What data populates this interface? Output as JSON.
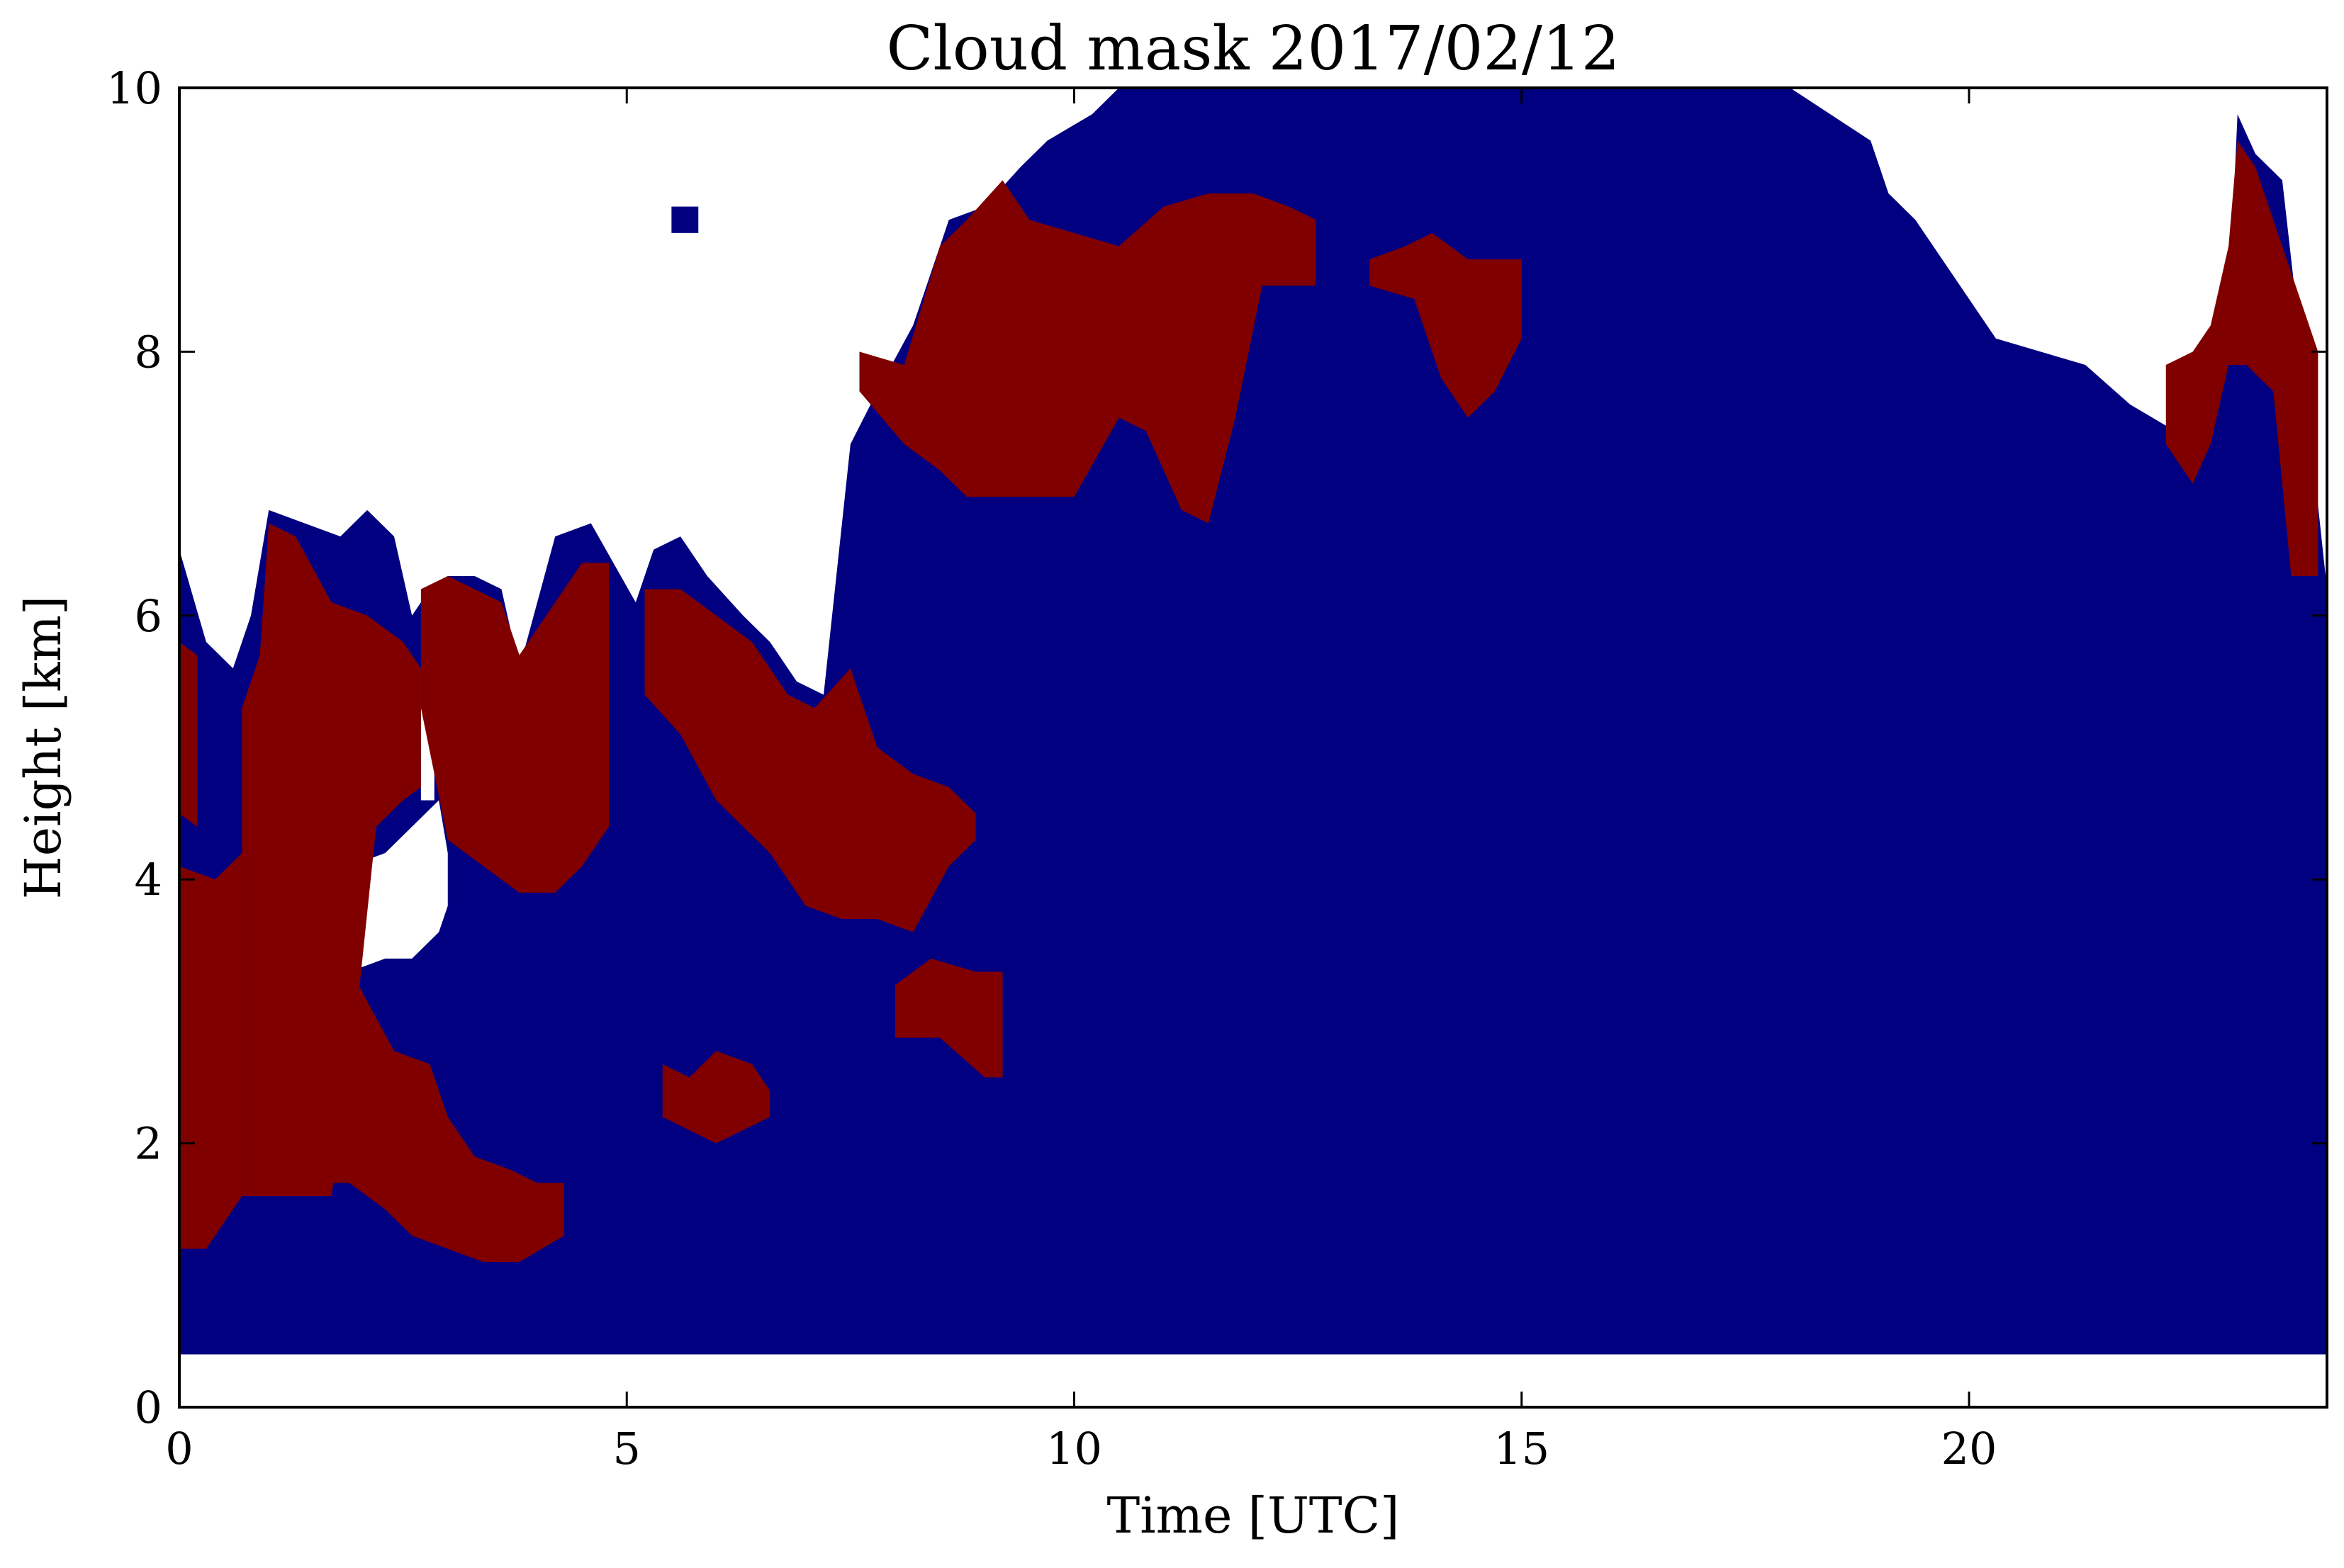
{
  "chart_data": {
    "type": "heatmap",
    "title": "Cloud mask 2017/02/12",
    "xlabel": "Time [UTC]",
    "ylabel": "Height [km]",
    "xlim": [
      0,
      24
    ],
    "ylim": [
      0,
      10
    ],
    "x_ticks": [
      0,
      5,
      10,
      15,
      20
    ],
    "y_ticks": [
      0,
      2,
      4,
      6,
      8,
      10
    ],
    "grid": false,
    "colors": {
      "cloud": "#000080",
      "ice": "#800000",
      "clear": "#ffffff",
      "axes": "#000000"
    },
    "categories": [
      "clear",
      "cloud",
      "ice"
    ],
    "bottom_gap_top_km": 0.4,
    "cloud_top_km": [
      [
        0.0,
        6.5
      ],
      [
        0.3,
        5.8
      ],
      [
        0.6,
        5.6
      ],
      [
        0.8,
        6.0
      ],
      [
        1.0,
        6.8
      ],
      [
        1.4,
        6.7
      ],
      [
        1.8,
        6.6
      ],
      [
        2.1,
        6.8
      ],
      [
        2.4,
        6.6
      ],
      [
        2.6,
        6.0
      ],
      [
        2.8,
        6.2
      ],
      [
        3.0,
        6.3
      ],
      [
        3.3,
        6.3
      ],
      [
        3.6,
        6.2
      ],
      [
        3.8,
        5.6
      ],
      [
        4.2,
        6.6
      ],
      [
        4.6,
        6.7
      ],
      [
        5.1,
        6.1
      ],
      [
        5.3,
        6.5
      ],
      [
        5.6,
        6.6
      ],
      [
        5.9,
        6.3
      ],
      [
        6.3,
        6.0
      ],
      [
        6.6,
        5.8
      ],
      [
        6.9,
        5.5
      ],
      [
        7.2,
        5.4
      ],
      [
        7.5,
        7.3
      ],
      [
        7.8,
        7.7
      ],
      [
        8.2,
        8.2
      ],
      [
        8.6,
        9.0
      ],
      [
        9.0,
        9.1
      ],
      [
        9.4,
        9.4
      ],
      [
        9.7,
        9.6
      ],
      [
        10.2,
        9.8
      ],
      [
        10.5,
        10.0
      ],
      [
        12.0,
        10.0
      ],
      [
        15.0,
        10.0
      ],
      [
        18.0,
        10.0
      ],
      [
        18.9,
        9.6
      ],
      [
        19.1,
        9.2
      ],
      [
        19.4,
        9.0
      ],
      [
        19.8,
        8.6
      ],
      [
        20.3,
        8.1
      ],
      [
        20.8,
        8.0
      ],
      [
        21.3,
        7.9
      ],
      [
        21.8,
        7.6
      ],
      [
        22.3,
        7.4
      ],
      [
        22.6,
        7.6
      ],
      [
        22.9,
        8.3
      ],
      [
        23.0,
        9.8
      ],
      [
        23.2,
        9.5
      ],
      [
        23.5,
        9.3
      ],
      [
        23.7,
        8.1
      ],
      [
        24.0,
        6.2
      ]
    ],
    "ice_regions": [
      {
        "top": [
          [
            0.0,
            5.8
          ],
          [
            0.2,
            5.7
          ]
        ],
        "bottom": [
          [
            0.0,
            4.5
          ],
          [
            0.2,
            4.4
          ]
        ]
      },
      {
        "top": [
          [
            0.0,
            4.1
          ],
          [
            0.4,
            4.0
          ],
          [
            0.7,
            4.2
          ]
        ],
        "bottom": [
          [
            0.0,
            1.2
          ],
          [
            0.3,
            1.2
          ],
          [
            0.5,
            1.4
          ],
          [
            0.7,
            1.6
          ]
        ]
      },
      {
        "top": [
          [
            0.7,
            5.3
          ],
          [
            0.9,
            5.7
          ],
          [
            1.0,
            6.7
          ],
          [
            1.3,
            6.6
          ],
          [
            1.7,
            6.1
          ],
          [
            2.1,
            6.0
          ],
          [
            2.5,
            5.8
          ],
          [
            2.7,
            5.6
          ]
        ],
        "bottom": [
          [
            0.7,
            1.6
          ],
          [
            1.0,
            1.6
          ],
          [
            1.4,
            1.6
          ],
          [
            1.7,
            1.6
          ],
          [
            2.0,
            3.1
          ],
          [
            2.2,
            4.4
          ],
          [
            2.5,
            4.6
          ],
          [
            2.7,
            4.7
          ]
        ]
      },
      {
        "top": [
          [
            1.5,
            3.2
          ],
          [
            2.0,
            3.2
          ],
          [
            2.4,
            2.7
          ],
          [
            2.8,
            2.6
          ],
          [
            3.0,
            2.2
          ],
          [
            3.3,
            1.9
          ],
          [
            3.7,
            1.8
          ],
          [
            4.0,
            1.7
          ],
          [
            4.3,
            1.7
          ]
        ],
        "bottom": [
          [
            1.5,
            1.7
          ],
          [
            1.9,
            1.7
          ],
          [
            2.3,
            1.5
          ],
          [
            2.6,
            1.3
          ],
          [
            3.0,
            1.2
          ],
          [
            3.4,
            1.1
          ],
          [
            3.8,
            1.1
          ],
          [
            4.3,
            1.3
          ]
        ]
      },
      {
        "top": [
          [
            2.7,
            6.2
          ],
          [
            3.0,
            6.3
          ],
          [
            3.6,
            6.1
          ],
          [
            3.8,
            5.7
          ],
          [
            4.2,
            6.1
          ],
          [
            4.5,
            6.4
          ],
          [
            4.8,
            6.4
          ]
        ],
        "bottom": [
          [
            2.7,
            5.3
          ],
          [
            3.0,
            4.3
          ],
          [
            3.4,
            4.1
          ],
          [
            3.8,
            3.9
          ],
          [
            4.2,
            3.9
          ],
          [
            4.5,
            4.1
          ],
          [
            4.8,
            4.4
          ]
        ]
      },
      {
        "top": [
          [
            5.2,
            6.2
          ],
          [
            5.6,
            6.2
          ],
          [
            6.0,
            6.0
          ],
          [
            6.4,
            5.8
          ],
          [
            6.8,
            5.4
          ],
          [
            7.1,
            5.3
          ],
          [
            7.5,
            5.6
          ],
          [
            7.8,
            5.0
          ],
          [
            8.2,
            4.8
          ],
          [
            8.6,
            4.7
          ],
          [
            8.9,
            4.5
          ]
        ],
        "bottom": [
          [
            5.2,
            5.4
          ],
          [
            5.6,
            5.1
          ],
          [
            6.0,
            4.6
          ],
          [
            6.3,
            4.4
          ],
          [
            6.6,
            4.2
          ],
          [
            7.0,
            3.8
          ],
          [
            7.4,
            3.7
          ],
          [
            7.8,
            3.7
          ],
          [
            8.2,
            3.6
          ],
          [
            8.6,
            4.1
          ],
          [
            8.9,
            4.3
          ]
        ]
      },
      {
        "top": [
          [
            8.0,
            3.2
          ],
          [
            8.4,
            3.4
          ],
          [
            8.9,
            3.3
          ],
          [
            9.2,
            3.3
          ]
        ],
        "bottom": [
          [
            8.0,
            2.8
          ],
          [
            8.5,
            2.8
          ],
          [
            9.0,
            2.5
          ],
          [
            9.2,
            2.5
          ]
        ]
      },
      {
        "top": [
          [
            5.4,
            2.6
          ],
          [
            5.7,
            2.5
          ],
          [
            6.0,
            2.7
          ],
          [
            6.4,
            2.6
          ],
          [
            6.6,
            2.4
          ]
        ],
        "bottom": [
          [
            5.4,
            2.2
          ],
          [
            5.7,
            2.1
          ],
          [
            6.0,
            2.0
          ],
          [
            6.3,
            2.1
          ],
          [
            6.6,
            2.2
          ]
        ]
      },
      {
        "top": [
          [
            7.6,
            8.0
          ],
          [
            8.1,
            7.9
          ],
          [
            8.5,
            8.8
          ],
          [
            8.8,
            9.0
          ],
          [
            9.2,
            9.3
          ],
          [
            9.5,
            9.0
          ],
          [
            10.0,
            8.9
          ],
          [
            10.5,
            8.8
          ],
          [
            11.0,
            9.1
          ],
          [
            11.5,
            9.2
          ],
          [
            12.0,
            9.2
          ],
          [
            12.4,
            9.1
          ],
          [
            12.7,
            9.0
          ]
        ],
        "bottom": [
          [
            7.6,
            7.7
          ],
          [
            8.1,
            7.3
          ],
          [
            8.5,
            7.1
          ],
          [
            8.8,
            6.9
          ],
          [
            9.3,
            6.9
          ],
          [
            10.0,
            6.9
          ],
          [
            10.5,
            7.5
          ],
          [
            10.8,
            7.4
          ],
          [
            11.2,
            6.8
          ],
          [
            11.5,
            6.7
          ],
          [
            11.8,
            7.5
          ],
          [
            12.1,
            8.5
          ],
          [
            12.7,
            8.5
          ]
        ]
      },
      {
        "top": [
          [
            13.3,
            8.7
          ],
          [
            13.7,
            8.8
          ],
          [
            14.0,
            8.9
          ],
          [
            14.4,
            8.7
          ],
          [
            15.0,
            8.7
          ]
        ],
        "bottom": [
          [
            13.3,
            8.5
          ],
          [
            13.8,
            8.4
          ],
          [
            14.1,
            7.8
          ],
          [
            14.4,
            7.5
          ],
          [
            14.7,
            7.7
          ],
          [
            15.0,
            8.1
          ]
        ]
      },
      {
        "top": [
          [
            22.2,
            7.9
          ],
          [
            22.5,
            8.0
          ],
          [
            22.7,
            8.2
          ],
          [
            22.9,
            8.8
          ],
          [
            23.0,
            9.6
          ],
          [
            23.2,
            9.4
          ],
          [
            23.6,
            8.6
          ],
          [
            23.9,
            8.0
          ]
        ],
        "bottom": [
          [
            22.2,
            7.3
          ],
          [
            22.5,
            7.0
          ],
          [
            22.7,
            7.3
          ],
          [
            22.9,
            7.9
          ],
          [
            23.1,
            7.9
          ],
          [
            23.4,
            7.7
          ],
          [
            23.6,
            6.3
          ],
          [
            23.9,
            6.3
          ]
        ]
      }
    ],
    "clear_gaps": [
      {
        "top": [
          [
            1.9,
            4.1
          ],
          [
            2.3,
            4.2
          ],
          [
            2.6,
            4.4
          ],
          [
            2.9,
            4.6
          ],
          [
            3.0,
            4.2
          ]
        ],
        "bottom": [
          [
            1.9,
            3.3
          ],
          [
            2.3,
            3.4
          ],
          [
            2.6,
            3.4
          ],
          [
            2.9,
            3.6
          ],
          [
            3.0,
            3.8
          ]
        ]
      },
      {
        "top": [
          [
            2.7,
            5.6
          ],
          [
            2.85,
            5.6
          ]
        ],
        "bottom": [
          [
            2.7,
            4.6
          ],
          [
            2.85,
            4.6
          ]
        ]
      }
    ],
    "small_patches": [
      {
        "x": [
          5.5,
          5.8
        ],
        "y": [
          8.9,
          9.1
        ],
        "category": "cloud"
      }
    ]
  }
}
